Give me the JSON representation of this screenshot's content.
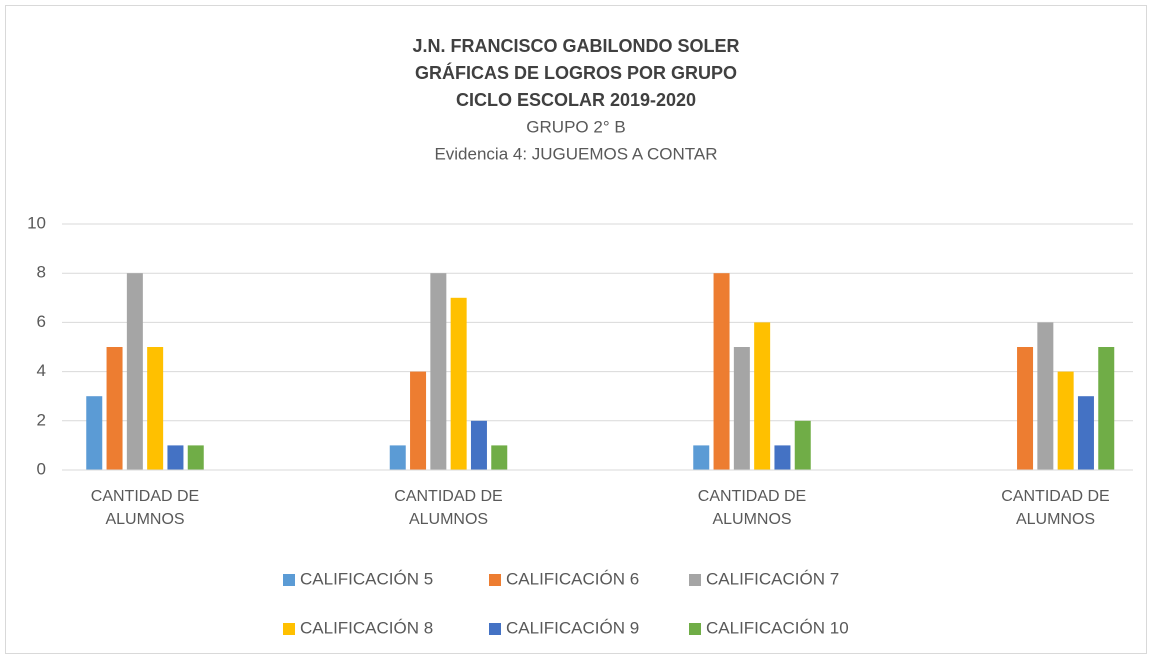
{
  "chart_data": {
    "type": "bar",
    "title": [
      "J.N. FRANCISCO GABILONDO SOLER",
      "GRÁFICAS DE LOGROS POR GRUPO",
      "CICLO ESCOLAR 2019-2020"
    ],
    "subtitle": [
      "GRUPO 2° B",
      "Evidencia 4: JUGUEMOS A CONTAR"
    ],
    "categories": [
      "CANTIDAD DE ALUMNOS",
      "CANTIDAD DE ALUMNOS",
      "CANTIDAD DE ALUMNOS",
      "CANTIDAD DE ALUMNOS"
    ],
    "series": [
      {
        "name": "CALIFICACIÓN 5",
        "color": "#5b9bd5",
        "values": [
          3,
          1,
          1,
          0
        ]
      },
      {
        "name": "CALIFICACIÓN 6",
        "color": "#ed7d31",
        "values": [
          5,
          4,
          8,
          5
        ]
      },
      {
        "name": "CALIFICACIÓN 7",
        "color": "#a5a5a5",
        "values": [
          8,
          8,
          5,
          6
        ]
      },
      {
        "name": "CALIFICACIÓN 8",
        "color": "#ffc000",
        "values": [
          5,
          7,
          6,
          4
        ]
      },
      {
        "name": "CALIFICACIÓN 9",
        "color": "#4472c4",
        "values": [
          1,
          2,
          1,
          3
        ]
      },
      {
        "name": "CALIFICACIÓN 10",
        "color": "#70ad47",
        "values": [
          1,
          1,
          2,
          5
        ]
      }
    ],
    "ylim": [
      0,
      10
    ],
    "yticks": [
      0,
      2,
      4,
      6,
      8,
      10
    ],
    "grid": true,
    "legend": "bottom"
  }
}
